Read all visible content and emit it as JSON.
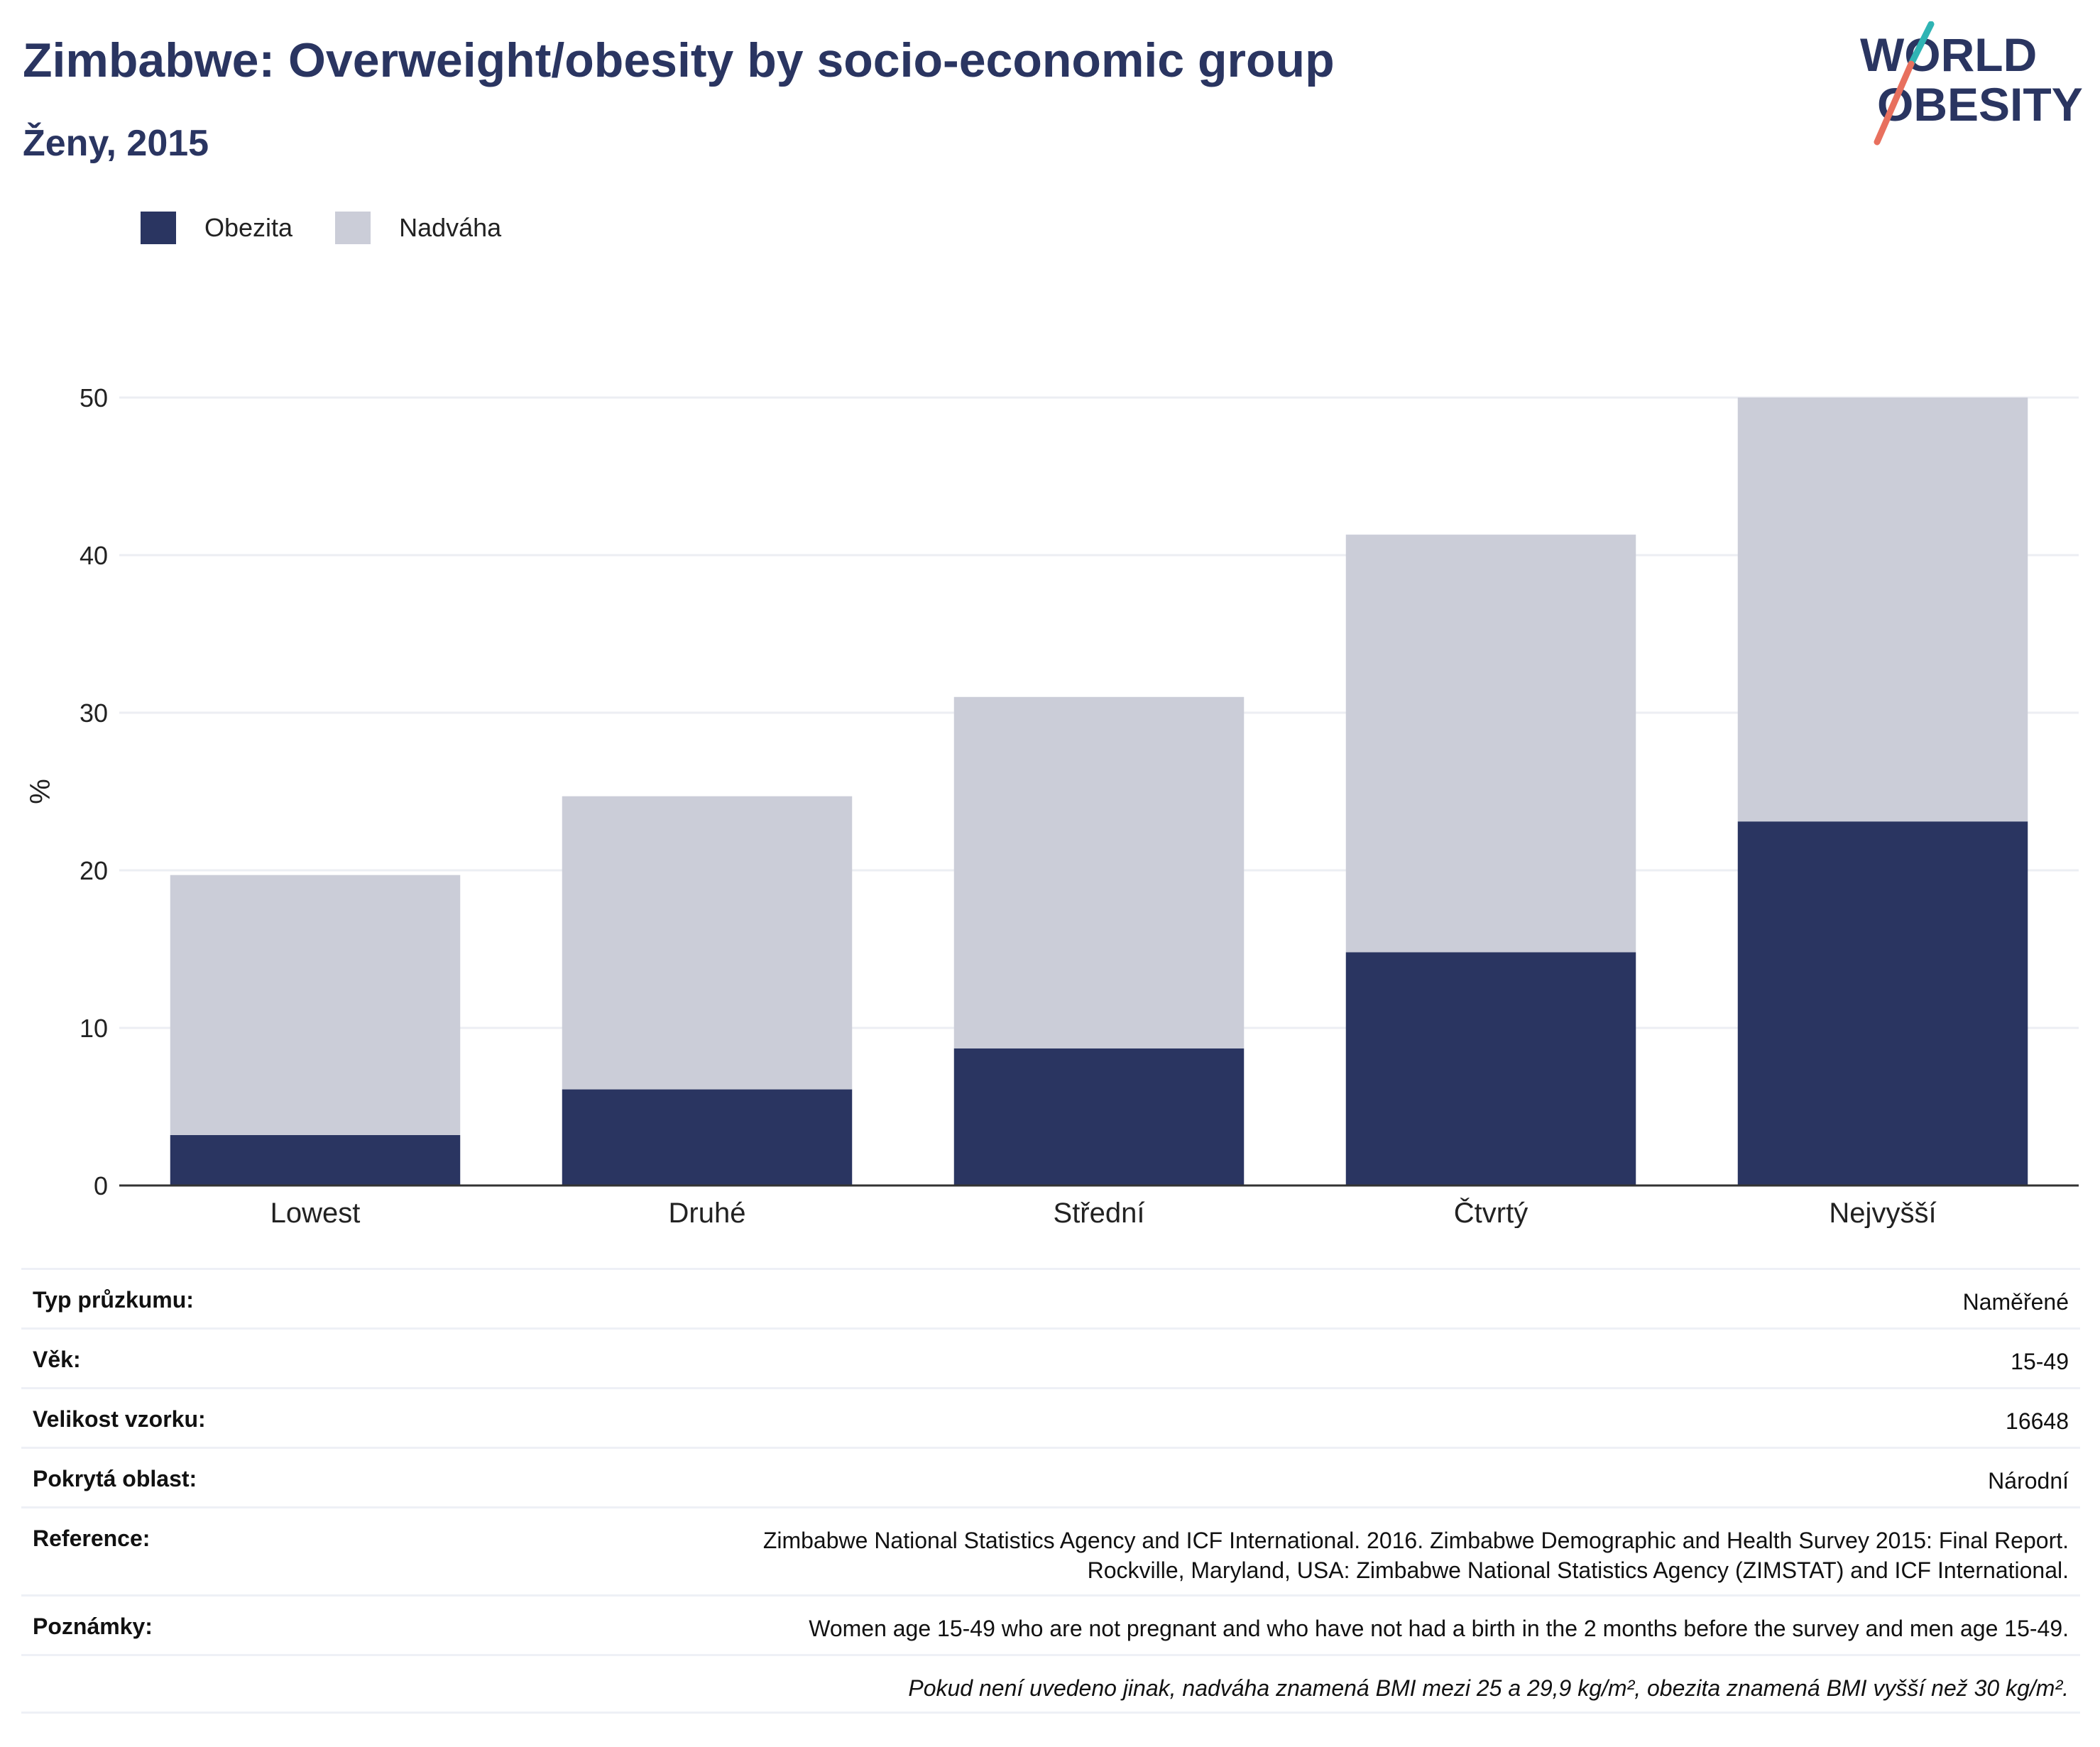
{
  "header": {
    "title": "Zimbabwe: Overweight/obesity by socio-economic group",
    "subtitle": "Ženy, 2015",
    "logo_line1": "WORLD",
    "logo_line2": "OBESITY"
  },
  "colors": {
    "obesity": "#2a3561",
    "overweight": "#cbcdd8",
    "axis": "#333333",
    "grid": "#eceef3",
    "logo_teal": "#2fb4b4",
    "logo_coral": "#e8705e"
  },
  "chart_data": {
    "type": "bar",
    "stacked": true,
    "categories": [
      "Lowest",
      "Druhé",
      "Střední",
      "Čtvrtý",
      "Nejvyšší"
    ],
    "series": [
      {
        "name": "Obezita",
        "values": [
          3.2,
          6.1,
          8.7,
          14.8,
          23.1
        ]
      },
      {
        "name": "Nadváha",
        "values": [
          16.5,
          18.6,
          22.3,
          26.5,
          26.9
        ]
      }
    ],
    "ylabel": "%",
    "ylim": [
      0,
      50
    ],
    "yticks": [
      0,
      10,
      20,
      30,
      40,
      50
    ],
    "grid": true,
    "legend_position": "top-left"
  },
  "legend": [
    {
      "label": "Obezita"
    },
    {
      "label": "Nadváha"
    }
  ],
  "info_table": {
    "rows": [
      {
        "label": "Typ průzkumu:",
        "value": "Naměřené"
      },
      {
        "label": "Věk:",
        "value": "15-49"
      },
      {
        "label": "Velikost vzorku:",
        "value": "16648"
      },
      {
        "label": "Pokrytá oblast:",
        "value": "Národní"
      },
      {
        "label": "Reference:",
        "value": "Zimbabwe National Statistics Agency and ICF International. 2016. Zimbabwe Demographic and Health Survey 2015: Final Report.",
        "value2": "Rockville, Maryland, USA: Zimbabwe National Statistics Agency (ZIMSTAT) and ICF International."
      },
      {
        "label": "Poznámky:",
        "value": "Women age 15-49 who are not pregnant and who have not had a birth in the 2 months before the survey and men age 15-49."
      }
    ],
    "footnote": "Pokud není uvedeno jinak, nadváha znamená BMI mezi 25 a 29,9 kg/m², obezita znamená BMI vyšší než 30 kg/m²."
  }
}
